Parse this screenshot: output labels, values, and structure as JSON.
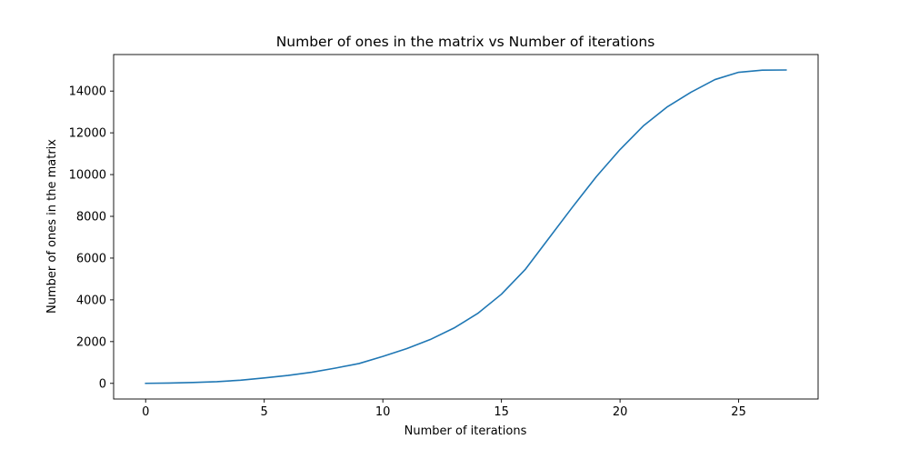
{
  "chart_data": {
    "type": "line",
    "title": "Number of ones in the matrix vs Number of iterations",
    "xlabel": "Number of iterations",
    "ylabel": "Number of ones in the matrix",
    "xlim": [
      -1.35,
      28.35
    ],
    "ylim": [
      -750,
      15750
    ],
    "xticks": [
      0,
      5,
      10,
      15,
      20,
      25
    ],
    "yticks": [
      0,
      2000,
      4000,
      6000,
      8000,
      10000,
      12000,
      14000
    ],
    "grid": false,
    "color": "#1f77b4",
    "x": [
      0,
      1,
      2,
      3,
      4,
      5,
      6,
      7,
      8,
      9,
      10,
      11,
      12,
      13,
      14,
      15,
      16,
      17,
      18,
      19,
      20,
      21,
      22,
      23,
      24,
      25,
      26,
      27
    ],
    "y": [
      1,
      16,
      40,
      80,
      150,
      260,
      380,
      530,
      730,
      950,
      1290,
      1660,
      2100,
      2650,
      3350,
      4270,
      5450,
      6950,
      8450,
      9900,
      11200,
      12350,
      13250,
      13950,
      14550,
      14900,
      15000,
      15010
    ]
  }
}
